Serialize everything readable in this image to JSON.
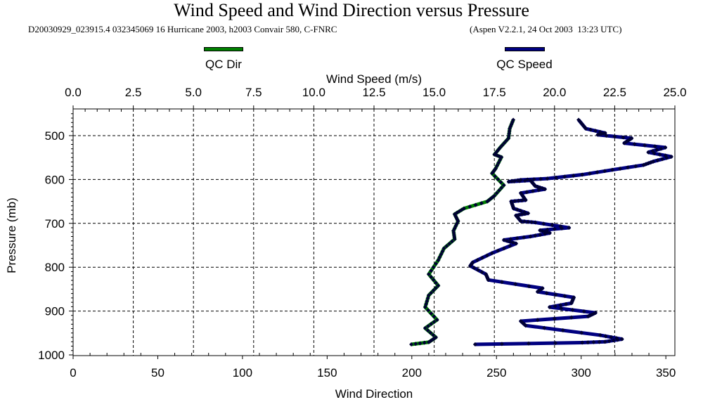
{
  "chart_data": {
    "type": "line",
    "title": "Wind Speed and Wind Direction versus Pressure",
    "subtitle": "D20030929_023915.4 032345069 16 Hurricane 2003, h2003 Convair 580, C-FNRC",
    "software": "(Aspen V2.2.1, 24 Oct 2003  13:23 UTC)",
    "ylabel": "Pressure (mb)",
    "x_top_label": "Wind Speed (m/s)",
    "x_bottom_label": "Wind Direction",
    "ylim": [
      1000,
      439
    ],
    "x_top_lim": [
      0,
      25
    ],
    "x_bottom_lim": [
      0,
      355.4
    ],
    "y_ticks": [
      "500",
      "600",
      "700",
      "800",
      "900",
      "1000"
    ],
    "x_top_ticks": [
      "0.0",
      "2.5",
      "5.0",
      "7.5",
      "10.0",
      "12.5",
      "15.0",
      "17.5",
      "20.0",
      "22.5",
      "25.0"
    ],
    "x_bottom_ticks": [
      "0",
      "50",
      "100",
      "150",
      "200",
      "250",
      "300",
      "350"
    ],
    "grid": true,
    "legend": [
      {
        "name": "QC Dir",
        "color": "#008000"
      },
      {
        "name": "QC Speed",
        "color": "#000080"
      }
    ],
    "series": [
      {
        "name": "QC Dir",
        "axis": "bottom",
        "color": "#008000",
        "points": [
          [
            464,
            259.9
          ],
          [
            484,
            257.8
          ],
          [
            506,
            257.1
          ],
          [
            527,
            252.2
          ],
          [
            543,
            248.8
          ],
          [
            549,
            252.9
          ],
          [
            575,
            249.5
          ],
          [
            586,
            247.4
          ],
          [
            613,
            254.3
          ],
          [
            637,
            248.8
          ],
          [
            650,
            244.6
          ],
          [
            666,
            230.8
          ],
          [
            679,
            225.3
          ],
          [
            695,
            227.3
          ],
          [
            717,
            224.6
          ],
          [
            736,
            225.3
          ],
          [
            757,
            219.0
          ],
          [
            784,
            215.6
          ],
          [
            816,
            210.0
          ],
          [
            842,
            215.6
          ],
          [
            864,
            210.0
          ],
          [
            891,
            207.9
          ],
          [
            920,
            214.9
          ],
          [
            939,
            207.9
          ],
          [
            960,
            214.2
          ],
          [
            971,
            210.0
          ],
          [
            976,
            199.7
          ]
        ]
      },
      {
        "name": "QC Speed",
        "axis": "top",
        "color": "#000080",
        "points": [
          [
            464,
            21.0
          ],
          [
            484,
            21.3
          ],
          [
            494,
            22.1
          ],
          [
            498,
            21.8
          ],
          [
            506,
            23.2
          ],
          [
            517,
            22.9
          ],
          [
            527,
            24.6
          ],
          [
            538,
            23.9
          ],
          [
            548,
            24.85
          ],
          [
            559,
            24.1
          ],
          [
            567,
            23.7
          ],
          [
            578,
            22.4
          ],
          [
            589,
            21.15
          ],
          [
            598,
            19.7
          ],
          [
            601,
            18.6
          ],
          [
            605,
            18.1
          ],
          [
            602,
            19.0
          ],
          [
            615,
            19.2
          ],
          [
            622,
            19.6
          ],
          [
            631,
            18.6
          ],
          [
            647,
            18.8
          ],
          [
            650,
            18.2
          ],
          [
            666,
            18.3
          ],
          [
            677,
            18.9
          ],
          [
            682,
            18.4
          ],
          [
            695,
            18.6
          ],
          [
            698,
            19.2
          ],
          [
            710,
            20.6
          ],
          [
            716,
            19.4
          ],
          [
            722,
            19.8
          ],
          [
            730,
            19.0
          ],
          [
            738,
            17.9
          ],
          [
            746,
            18.4
          ],
          [
            768,
            17.4
          ],
          [
            789,
            16.6
          ],
          [
            797,
            16.5
          ],
          [
            816,
            17.15
          ],
          [
            829,
            17.25
          ],
          [
            848,
            19.5
          ],
          [
            856,
            19.3
          ],
          [
            869,
            20.8
          ],
          [
            882,
            20.7
          ],
          [
            891,
            19.8
          ],
          [
            904,
            21.7
          ],
          [
            912,
            21.4
          ],
          [
            923,
            18.6
          ],
          [
            933,
            18.8
          ],
          [
            955,
            21.9
          ],
          [
            964,
            22.8
          ],
          [
            970,
            22.1
          ],
          [
            972,
            21.15
          ],
          [
            976,
            16.7
          ]
        ]
      }
    ]
  }
}
